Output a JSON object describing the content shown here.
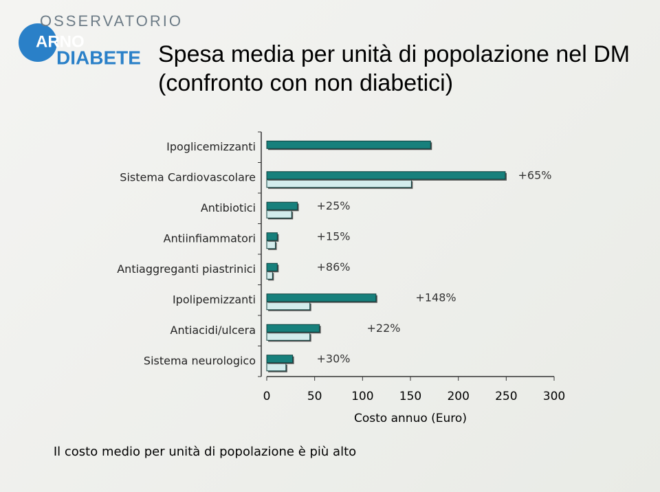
{
  "logo": {
    "line1": "OSSERVATORIO",
    "line2": "ARNO",
    "line3": "DIABETE"
  },
  "chart_data": {
    "type": "hbar",
    "title": "Spesa media per unità di popolazione nel DM (confronto con non diabetici)",
    "categories": [
      "Ipoglicemizzanti",
      "Sistema Cardiovascolare",
      "Antibiotici",
      "Antiinfiammatori",
      "Antiaggreganti piastrinici",
      "Ipolipemizzanti",
      "Antiacidi/ulcera",
      "Sistema neurologico"
    ],
    "series": [
      {
        "color": "#17807c",
        "values": [
          171,
          249,
          32,
          11,
          11,
          114,
          55,
          27
        ]
      },
      {
        "color": "#d3ecec",
        "values": [
          null,
          151,
          26,
          9,
          6,
          45,
          45,
          20
        ]
      }
    ],
    "annotations": [
      {
        "text": "+65%",
        "category": 1
      },
      {
        "text": "+25%",
        "category": 2
      },
      {
        "text": "+15%",
        "category": 3
      },
      {
        "text": "+86%",
        "category": 4
      },
      {
        "text": "+148%",
        "category": 5
      },
      {
        "text": "+22%",
        "category": 6
      },
      {
        "text": "+30%",
        "category": 7
      }
    ],
    "xlabel": "Costo annuo (Euro)",
    "xlim": [
      0,
      300
    ],
    "xticks": [
      0,
      50,
      100,
      150,
      200,
      250,
      300
    ]
  },
  "footer": "Il costo medio per unità di popolazione è più alto"
}
